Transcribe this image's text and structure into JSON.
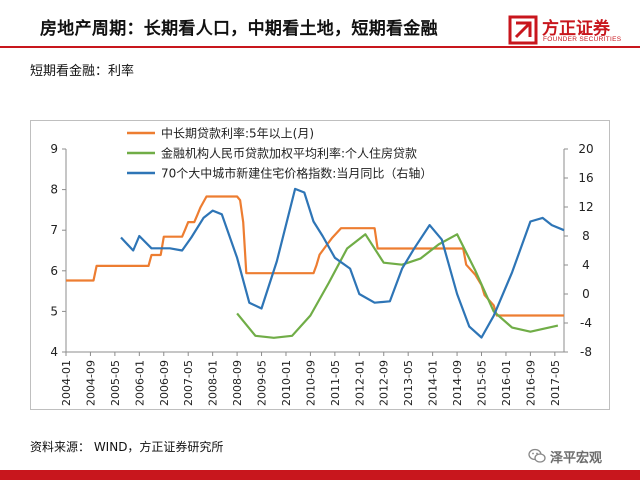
{
  "slide": {
    "title": "房地产周期：长期看人口，中期看土地，短期看金融",
    "subtitle": "短期看金融：利率",
    "source": "资料来源： WIND，方正证券研究所"
  },
  "brand": {
    "logo_text": "方正证券",
    "logo_sub": "FOUNDER SECURITIES",
    "logo_color": "#c8161d",
    "watermark": "泽平宏观"
  },
  "chart_data": {
    "type": "line",
    "title": "",
    "x_ticks": [
      "2004-01",
      "2004-09",
      "2005-05",
      "2006-01",
      "2006-09",
      "2007-05",
      "2008-01",
      "2008-09",
      "2009-05",
      "2010-01",
      "2010-09",
      "2011-05",
      "2012-01",
      "2012-09",
      "2013-05",
      "2014-01",
      "2014-09",
      "2015-05",
      "2016-01",
      "2016-09",
      "2017-05"
    ],
    "x_range": [
      "2004-01",
      "2017-08"
    ],
    "y_left": {
      "min": 4,
      "max": 9,
      "ticks": [
        4,
        5,
        6,
        7,
        8,
        9
      ]
    },
    "y_right": {
      "min": -8,
      "max": 20,
      "ticks": [
        -8,
        -4,
        0,
        4,
        8,
        12,
        16,
        20
      ]
    },
    "legend_position": "top",
    "series": [
      {
        "name": "中长期贷款利率:5年以上(月)",
        "axis": "left",
        "color": "#ed7d31",
        "points": [
          [
            "2004-01",
            5.76
          ],
          [
            "2004-10",
            5.76
          ],
          [
            "2004-11",
            6.12
          ],
          [
            "2006-04",
            6.12
          ],
          [
            "2006-05",
            6.39
          ],
          [
            "2006-08",
            6.39
          ],
          [
            "2006-09",
            6.84
          ],
          [
            "2007-03",
            6.84
          ],
          [
            "2007-04",
            7.02
          ],
          [
            "2007-05",
            7.2
          ],
          [
            "2007-07",
            7.2
          ],
          [
            "2007-08",
            7.38
          ],
          [
            "2007-09",
            7.56
          ],
          [
            "2007-11",
            7.83
          ],
          [
            "2008-09",
            7.83
          ],
          [
            "2008-10",
            7.74
          ],
          [
            "2008-11",
            7.2
          ],
          [
            "2008-12",
            5.94
          ],
          [
            "2010-10",
            5.94
          ],
          [
            "2010-11",
            6.14
          ],
          [
            "2010-12",
            6.4
          ],
          [
            "2011-02",
            6.6
          ],
          [
            "2011-04",
            6.8
          ],
          [
            "2011-07",
            7.05
          ],
          [
            "2012-06",
            7.05
          ],
          [
            "2012-07",
            6.55
          ],
          [
            "2014-11",
            6.55
          ],
          [
            "2014-12",
            6.15
          ],
          [
            "2015-03",
            5.9
          ],
          [
            "2015-05",
            5.65
          ],
          [
            "2015-06",
            5.4
          ],
          [
            "2015-09",
            5.15
          ],
          [
            "2015-10",
            4.9
          ],
          [
            "2017-08",
            4.9
          ]
        ]
      },
      {
        "name": "金融机构人民币贷款加权平均利率:个人住房贷款",
        "axis": "left",
        "color": "#70ad47",
        "points": [
          [
            "2008-09",
            4.95
          ],
          [
            "2009-03",
            4.4
          ],
          [
            "2009-09",
            4.35
          ],
          [
            "2010-03",
            4.4
          ],
          [
            "2010-09",
            4.9
          ],
          [
            "2011-03",
            5.7
          ],
          [
            "2011-09",
            6.55
          ],
          [
            "2012-03",
            6.9
          ],
          [
            "2012-09",
            6.2
          ],
          [
            "2013-03",
            6.15
          ],
          [
            "2013-09",
            6.3
          ],
          [
            "2014-03",
            6.65
          ],
          [
            "2014-09",
            6.9
          ],
          [
            "2015-03",
            6.0
          ],
          [
            "2015-09",
            5.0
          ],
          [
            "2016-03",
            4.6
          ],
          [
            "2016-09",
            4.5
          ],
          [
            "2017-06",
            4.65
          ]
        ]
      },
      {
        "name": "70个大中城市新建住宅价格指数:当月同比（右轴）",
        "axis": "right",
        "color": "#2e75b6",
        "points": [
          [
            "2005-07",
            7.8
          ],
          [
            "2005-11",
            6.0
          ],
          [
            "2006-01",
            8.0
          ],
          [
            "2006-05",
            6.3
          ],
          [
            "2006-11",
            6.3
          ],
          [
            "2007-03",
            6.0
          ],
          [
            "2007-06",
            7.8
          ],
          [
            "2007-10",
            10.5
          ],
          [
            "2008-01",
            11.5
          ],
          [
            "2008-04",
            11.0
          ],
          [
            "2008-09",
            5.0
          ],
          [
            "2009-01",
            -1.2
          ],
          [
            "2009-05",
            -2.0
          ],
          [
            "2009-10",
            4.5
          ],
          [
            "2010-04",
            14.5
          ],
          [
            "2010-07",
            14.0
          ],
          [
            "2010-10",
            10.0
          ],
          [
            "2011-01",
            8.0
          ],
          [
            "2011-05",
            5.0
          ],
          [
            "2011-10",
            3.5
          ],
          [
            "2012-01",
            0.0
          ],
          [
            "2012-06",
            -1.2
          ],
          [
            "2012-11",
            -1.0
          ],
          [
            "2013-03",
            3.5
          ],
          [
            "2013-07",
            6.3
          ],
          [
            "2013-12",
            9.5
          ],
          [
            "2014-04",
            7.5
          ],
          [
            "2014-09",
            0.0
          ],
          [
            "2015-01",
            -4.5
          ],
          [
            "2015-05",
            -6.0
          ],
          [
            "2015-09",
            -3.0
          ],
          [
            "2016-03",
            3.0
          ],
          [
            "2016-09",
            10.0
          ],
          [
            "2017-01",
            10.5
          ],
          [
            "2017-04",
            9.5
          ],
          [
            "2017-08",
            8.8
          ]
        ]
      }
    ]
  }
}
